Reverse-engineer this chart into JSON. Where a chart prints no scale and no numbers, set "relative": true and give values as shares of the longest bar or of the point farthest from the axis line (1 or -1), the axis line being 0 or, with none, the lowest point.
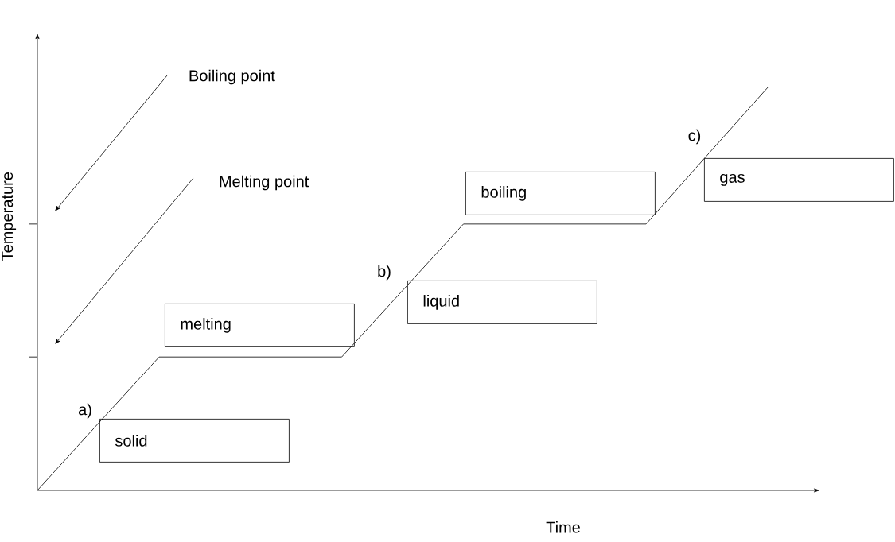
{
  "chart_data": {
    "type": "line",
    "relative": true,
    "xlabel": "Time",
    "ylabel": "Temperature",
    "categories": [
      null,
      null,
      null,
      null,
      null,
      null,
      null,
      null,
      null,
      null,
      null,
      null,
      null
    ],
    "values": [
      0,
      0.166,
      0.331,
      0.331,
      0.331,
      0.331,
      0.496,
      0.661,
      0.661,
      0.661,
      0.661,
      0.831,
      1.0
    ],
    "color": "#000000",
    "marker": "none",
    "line_style": "solid",
    "annotations": [
      "solid",
      "melting",
      "liquid",
      "boiling",
      "gas",
      "a)",
      "b)",
      "c)",
      "Boiling point",
      "Melting point"
    ]
  }
}
